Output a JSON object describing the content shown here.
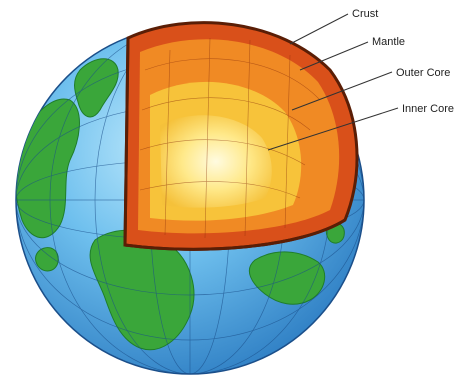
{
  "labels": {
    "crust": "Crust",
    "mantle": "Mantle",
    "outer_core": "Outer Core",
    "inner_core": "Inner Core"
  },
  "colors": {
    "ocean": "#4aa3e0",
    "ocean_light": "#8fd0f5",
    "land": "#3aa63a",
    "land_dark": "#1f7d2a",
    "crust": "#d9501a",
    "mantle": "#f08a24",
    "outer_core": "#f7c33a",
    "inner_core": "#fff5b0",
    "outline": "#5a1e06",
    "grid": "#1b4f8a"
  },
  "icons": {
    "globe": "earth-globe-icon"
  }
}
